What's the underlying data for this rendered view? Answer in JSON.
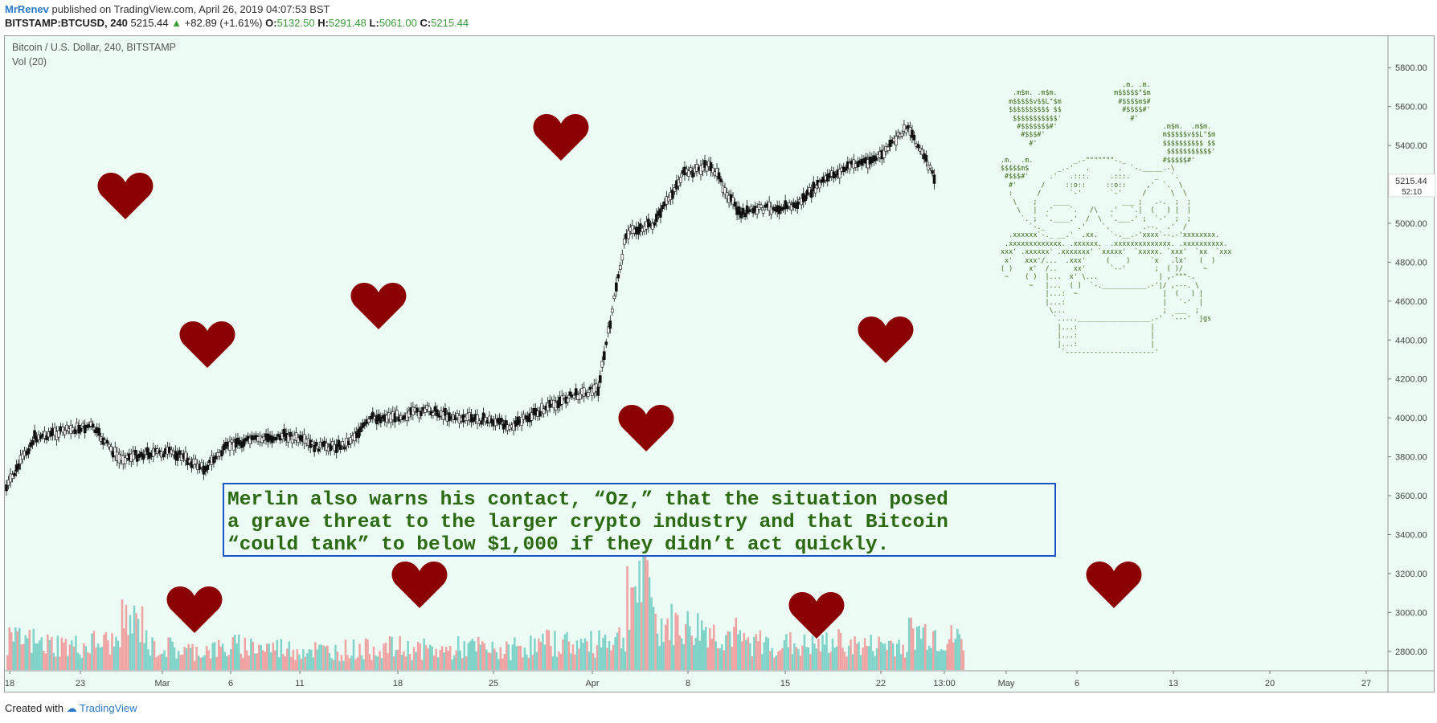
{
  "header": {
    "user": "MrRenev",
    "published": "published on TradingView.com, April 26, 2019 04:07:53 BST",
    "symbol": "BITSTAMP:BTCUSD, 240",
    "last": "5215.44",
    "change": "+82.89 (+1.61%)",
    "open_label": "O:",
    "open": "5132.50",
    "high_label": "H:",
    "high": "5291.48",
    "low_label": "L:",
    "low": "5061.00",
    "close_label": "C:",
    "close": "5215.44"
  },
  "legend": {
    "title": "Bitcoin / U.S. Dollar, 240, BITSTAMP",
    "volume": "Vol (20)"
  },
  "price_tag": {
    "price": "5215.44",
    "countdown": "52:10"
  },
  "quote_text": "Merlin also warns his contact, “Oz,” that the situation posed\na grave threat to the larger crypto industry and that Bitcoin\n“could tank” to below $1,000 if they didn’t act quickly.",
  "ascii_art": "                              .m. .m.\n   .m$m. .m$m.              m$$$$$\"$m\n  m$$$$$v$$L\"$m              #$$$$m$#\n  $$$$$$$$$$ $$               #$$$$#'\n   $$$$$$$$$$$'                 #'\n    #$$$$$$$#'                          .m$m.  .m$m.\n     #$$$#'                             m$$$$$v$$L\"$m\n       #'                               $$$$$$$$$$ $$\n                                         $$$$$$$$$$$'\n.m.  .m.          _.-\"\"\"\"\"\"\"-._         #$$$$$#'\n$$$$$m$       _.-'   .       .  `-._____.-\\\n #$$$#'     .'   .:::.     .:::.      _   `.\n  #'      /     ::o::     ::o::     ,'  `.  \\\n  :      /       `-'       `-'     /      \\  \\\n   \\    ;    ____             ___ ;   .-.  ;  ;\n    \\   |  .'    `.   /\\   .'   `.|  (   ) |  |\n     `. ;  `.____.'  /  \\  `.___.' ;  `-'  ;  ;\n       `-._        .'    `.        .--.  .'  /\n  .xxxxxx`-._ __.'  .xx.   `-.__.-'xxxx`--.-'xxxxxxxx.\n .xxxxxxxxxxxxx. .xxxxxx.  .xxxxxxxxxxxxxx. .xxxxxxxxxx.\nxxx' .xxxxxx' .xxxxxxx' `xxxxx'  `xxxxx. `xxx'  `xx  `xxx\n x'   xxx'/...  .xxx'     (    )     `x   .lx'   (  )\n( )    x'  /..    xx'      `--'       ;  ( )/     ~\n ~    ( )  |...  x' \\...               | ,-\"\"\"-.\n       ~   |...  ( )  `-.___________.-'|/ ,---. \\\n           |...:  ~                     |  (   ) |\n           |...:                        |   `-'  |\n            \\...                        ;  ___  ;\n             `.....__________________.-'  `---'  jgs\n              |...:                  |\n              |...:                  |\n              |...:                  |\n               `----------------------'",
  "axis": {
    "x_ticks": [
      "18",
      "23",
      "Mar",
      "6",
      "11",
      "18",
      "25",
      "Apr",
      "8",
      "15",
      "22",
      "13:00",
      "May",
      "6",
      "13",
      "20",
      "27"
    ],
    "y_ticks": [
      "5800.00",
      "5600.00",
      "5400.00",
      "5200.00",
      "5000.00",
      "4800.00",
      "4600.00",
      "4400.00",
      "4200.00",
      "4000.00",
      "3800.00",
      "3600.00",
      "3400.00",
      "3200.00",
      "3000.00",
      "2800.00"
    ]
  },
  "footer": {
    "created_with": "Created with",
    "brand": "TradingView"
  },
  "colors": {
    "candle": "#111111",
    "vol_up": "#7fd3c8",
    "vol_down": "#f0a3a3",
    "heart": "#8b0000",
    "quote_text": "#2b6a12",
    "quote_border": "#1a55c8",
    "background": "#ecfbf4"
  },
  "chart_data": {
    "type": "candlestick",
    "title": "Bitcoin / U.S. Dollar, 240, BITSTAMP",
    "ylim": [
      2700,
      5900
    ],
    "x": [
      "Feb 18",
      "Feb 20",
      "Feb 22",
      "Feb 24",
      "Feb 26",
      "Feb 28",
      "Mar 2",
      "Mar 4",
      "Mar 6",
      "Mar 8",
      "Mar 10",
      "Mar 12",
      "Mar 14",
      "Mar 16",
      "Mar 18",
      "Mar 20",
      "Mar 22",
      "Mar 24",
      "Mar 26",
      "Mar 28",
      "Mar 30",
      "Apr 1",
      "Apr 3",
      "Apr 5",
      "Apr 7",
      "Apr 9",
      "Apr 11",
      "Apr 13",
      "Apr 15",
      "Apr 17",
      "Apr 19",
      "Apr 21",
      "Apr 23",
      "Apr 25"
    ],
    "close": [
      3640,
      3900,
      3930,
      3960,
      3790,
      3820,
      3820,
      3740,
      3870,
      3890,
      3910,
      3850,
      3860,
      4000,
      4010,
      4040,
      4000,
      3990,
      3960,
      4040,
      4110,
      4150,
      4950,
      5000,
      5250,
      5300,
      5050,
      5080,
      5090,
      5220,
      5300,
      5340,
      5500,
      5215.44
    ],
    "volume": [
      180,
      160,
      150,
      170,
      290,
      140,
      120,
      130,
      150,
      140,
      130,
      120,
      130,
      140,
      130,
      120,
      140,
      120,
      150,
      170,
      160,
      200,
      520,
      280,
      260,
      220,
      170,
      160,
      150,
      170,
      150,
      160,
      230,
      190
    ],
    "volume_label": "Vol (20)"
  },
  "hearts_note": "decorative",
  "hearts": [
    {
      "name": "heart-1"
    },
    {
      "name": "heart-2"
    },
    {
      "name": "heart-3"
    },
    {
      "name": "heart-4"
    },
    {
      "name": "heart-5"
    },
    {
      "name": "heart-6"
    },
    {
      "name": "heart-7"
    },
    {
      "name": "heart-8"
    },
    {
      "name": "heart-9"
    },
    {
      "name": "heart-10"
    },
    {
      "name": "heart-11"
    }
  ]
}
